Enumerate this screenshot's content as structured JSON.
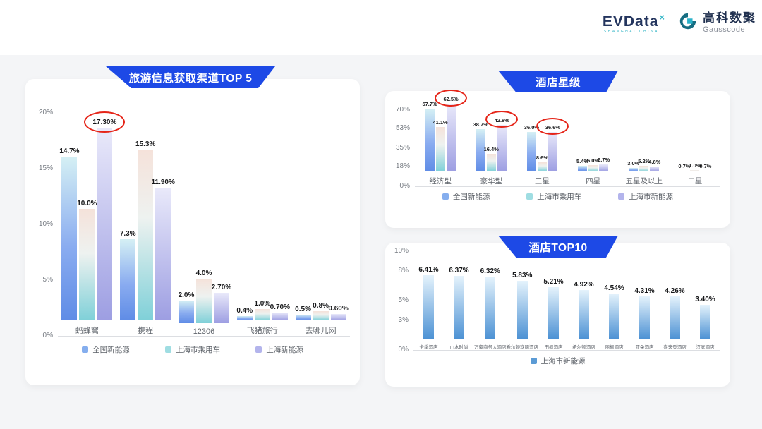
{
  "logo": {
    "evdata_text": "EVData",
    "evdata_sup": "×",
    "evdata_sub": "SHANGHAI CHINA",
    "gausscode_cn": "高科数聚",
    "gausscode_en": "Gausscode"
  },
  "colors": {
    "banner_blue": "#1d49e6",
    "highlight_red": "#e52418",
    "series_blue": "#85aeee",
    "series_teal": "#9fdde2",
    "series_purple": "#b3b4ec",
    "top10_blue": "#5b9bd5"
  },
  "chart_data": [
    {
      "id": "travel",
      "type": "bar",
      "title": "旅游信息获取渠道TOP 5",
      "ylim": [
        0,
        20
      ],
      "grid": false,
      "legend_position": "bottom",
      "y_ticks": [
        {
          "v": 20,
          "label": "20%"
        },
        {
          "v": 15,
          "label": "15%"
        },
        {
          "v": 10,
          "label": "10%"
        },
        {
          "v": 5,
          "label": "5%"
        },
        {
          "v": 0,
          "label": "0%"
        }
      ],
      "categories": [
        "蚂蜂窝",
        "携程",
        "12306",
        "飞猪旅行",
        "去哪儿网"
      ],
      "series": [
        {
          "name": "全国新能源",
          "values": [
            14.7,
            7.3,
            2.0,
            0.4,
            0.5
          ],
          "labels": [
            "14.7%",
            "7.3%",
            "2.0%",
            "0.4%",
            "0.5%"
          ],
          "circled": []
        },
        {
          "name": "上海市乘用车",
          "values": [
            10.0,
            15.3,
            4.0,
            1.0,
            0.8
          ],
          "labels": [
            "10.0%",
            "15.3%",
            "4.0%",
            "1.0%",
            "0.8%"
          ],
          "circled": []
        },
        {
          "name": "上海新能源",
          "values": [
            17.3,
            11.9,
            2.7,
            0.7,
            0.6
          ],
          "labels": [
            "17.30%",
            "11.90%",
            "2.70%",
            "0.70%",
            "0.60%"
          ],
          "circled": [
            0
          ]
        }
      ]
    },
    {
      "id": "stars",
      "type": "bar",
      "title": "酒店星级",
      "ylim": [
        0,
        70
      ],
      "grid": false,
      "legend_position": "bottom",
      "y_ticks": [
        {
          "v": 70,
          "label": "70%"
        },
        {
          "v": 53,
          "label": "53%"
        },
        {
          "v": 35,
          "label": "35%"
        },
        {
          "v": 18,
          "label": "18%"
        },
        {
          "v": 0,
          "label": "0%"
        }
      ],
      "categories": [
        "经济型",
        "豪华型",
        "三星",
        "四星",
        "五星及以上",
        "二星"
      ],
      "series": [
        {
          "name": "全国新能源",
          "values": [
            57.7,
            38.7,
            36.0,
            5.4,
            3.0,
            0.7
          ],
          "labels": [
            "57.7%",
            "38.7%",
            "36.0%",
            "5.4%",
            "3.0%",
            "0.7%"
          ],
          "circled": []
        },
        {
          "name": "上海市乘用车",
          "values": [
            41.1,
            16.4,
            8.6,
            6.0,
            5.2,
            1.0
          ],
          "labels": [
            "41.1%",
            "16.4%",
            "8.6%",
            "6.0%",
            "5.2%",
            "1.0%"
          ],
          "circled": []
        },
        {
          "name": "上海市新能源",
          "values": [
            62.5,
            42.8,
            36.6,
            6.7,
            4.6,
            0.7
          ],
          "labels": [
            "62.5%",
            "42.8%",
            "36.6%",
            "6.7%",
            "4.6%",
            "0.7%"
          ],
          "circled": [
            0,
            1,
            2
          ]
        }
      ]
    },
    {
      "id": "top10",
      "type": "bar",
      "title": "酒店TOP10",
      "ylim": [
        0,
        10
      ],
      "grid": false,
      "legend_position": "bottom",
      "y_ticks": [
        {
          "v": 10,
          "label": "10%"
        },
        {
          "v": 8,
          "label": "8%"
        },
        {
          "v": 5,
          "label": "5%"
        },
        {
          "v": 3,
          "label": "3%"
        },
        {
          "v": 0,
          "label": "0%"
        }
      ],
      "categories": [
        "全季酒店",
        "山水时尚",
        "万豪商务大酒店",
        "希尔顿欢朋酒店",
        "田枫酒店",
        "希尔顿酒店",
        "丽枫酒店",
        "亚朵酒店",
        "喜来登酒店",
        "汉庭酒店"
      ],
      "series": [
        {
          "name": "上海市新能源",
          "values": [
            6.41,
            6.37,
            6.32,
            5.83,
            5.21,
            4.92,
            4.54,
            4.31,
            4.26,
            3.4
          ],
          "labels": [
            "6.41%",
            "6.37%",
            "6.32%",
            "5.83%",
            "5.21%",
            "4.92%",
            "4.54%",
            "4.31%",
            "4.26%",
            "3.40%"
          ],
          "circled": []
        }
      ]
    }
  ]
}
